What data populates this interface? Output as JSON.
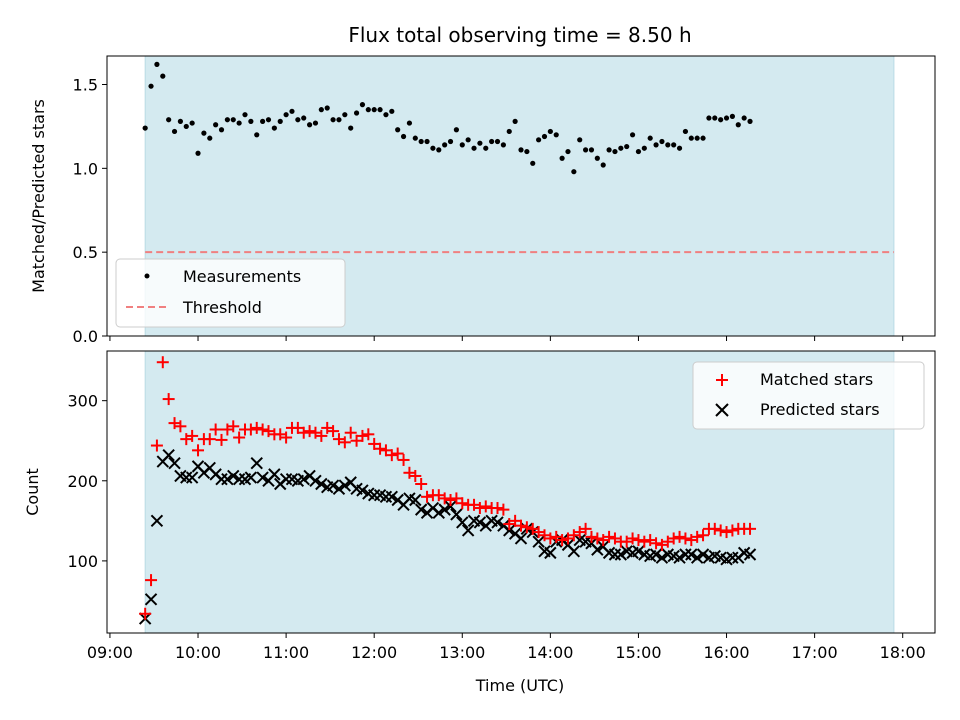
{
  "chart_data": [
    {
      "type": "scatter",
      "title": "Flux total observing time = 8.50 h",
      "ylabel": "Matched/Predicted stars",
      "xlabel": "",
      "ylim": [
        0,
        1.67
      ],
      "yticks": [
        "0.0",
        "0.5",
        "1.0",
        "1.5"
      ],
      "ytick_values": [
        0,
        0.5,
        1.0,
        1.5
      ],
      "shaded_span": [
        "09:24",
        "17:54"
      ],
      "shade_color": "#d4eaf0",
      "threshold": 0.5,
      "threshold_color": "#f08080",
      "legend_position": "lower-left",
      "legend": [
        "Measurements",
        "Threshold"
      ],
      "series": [
        {
          "name": "Measurements",
          "color": "#000000",
          "x_start": "09:24",
          "x_step_min": 4,
          "values": [
            1.24,
            1.49,
            1.62,
            1.55,
            1.29,
            1.22,
            1.28,
            1.25,
            1.27,
            1.09,
            1.21,
            1.18,
            1.26,
            1.23,
            1.29,
            1.29,
            1.27,
            1.32,
            1.28,
            1.2,
            1.28,
            1.29,
            1.24,
            1.28,
            1.32,
            1.34,
            1.29,
            1.3,
            1.26,
            1.27,
            1.35,
            1.36,
            1.29,
            1.29,
            1.32,
            1.24,
            1.33,
            1.38,
            1.35,
            1.35,
            1.35,
            1.32,
            1.34,
            1.23,
            1.19,
            1.27,
            1.18,
            1.16,
            1.16,
            1.12,
            1.11,
            1.14,
            1.16,
            1.23,
            1.14,
            1.17,
            1.12,
            1.15,
            1.12,
            1.16,
            1.16,
            1.14,
            1.22,
            1.28,
            1.11,
            1.1,
            1.03,
            1.17,
            1.19,
            1.22,
            1.2,
            1.06,
            1.1,
            0.98,
            1.17,
            1.11,
            1.11,
            1.06,
            1.02,
            1.11,
            1.1,
            1.12,
            1.13,
            1.2,
            1.1,
            1.12,
            1.18,
            1.14,
            1.16,
            1.14,
            1.14,
            1.12,
            1.22,
            1.18,
            1.18,
            1.18,
            1.3,
            1.3,
            1.29,
            1.3,
            1.31,
            1.26,
            1.3,
            1.28
          ]
        }
      ]
    },
    {
      "type": "scatter",
      "xlabel": "Time (UTC)",
      "ylabel": "Count",
      "ylim": [
        10,
        362
      ],
      "yticks": [
        "100",
        "200",
        "300"
      ],
      "ytick_values": [
        100,
        200,
        300
      ],
      "xticks": [
        "09:00",
        "10:00",
        "11:00",
        "12:00",
        "13:00",
        "14:00",
        "15:00",
        "16:00",
        "17:00",
        "18:00"
      ],
      "xlim": [
        "08:58",
        "18:22"
      ],
      "shaded_span": [
        "09:24",
        "17:54"
      ],
      "shade_color": "#d4eaf0",
      "legend_position": "top-right",
      "legend": [
        "Matched stars",
        "Predicted stars"
      ],
      "series": [
        {
          "name": "Matched stars",
          "marker": "plus",
          "color": "#ff0000",
          "x_start": "09:24",
          "x_step_min": 4,
          "values": [
            34,
            76,
            244,
            348,
            302,
            272,
            268,
            252,
            256,
            238,
            252,
            252,
            264,
            251,
            264,
            268,
            254,
            264,
            264,
            266,
            264,
            262,
            258,
            258,
            254,
            266,
            266,
            260,
            262,
            260,
            256,
            266,
            262,
            252,
            248,
            260,
            250,
            256,
            258,
            246,
            240,
            238,
            232,
            234,
            226,
            210,
            206,
            196,
            180,
            182,
            182,
            178,
            176,
            178,
            172,
            170,
            170,
            166,
            168,
            166,
            166,
            164,
            146,
            150,
            144,
            142,
            140,
            136,
            132,
            128,
            130,
            126,
            128,
            132,
            136,
            140,
            130,
            128,
            126,
            130,
            128,
            124,
            124,
            128,
            126,
            124,
            126,
            122,
            120,
            124,
            128,
            130,
            128,
            126,
            130,
            132,
            140,
            140,
            138,
            136,
            138,
            140,
            140,
            140
          ]
        },
        {
          "name": "Predicted stars",
          "marker": "x",
          "color": "#000000",
          "x_start": "09:24",
          "x_step_min": 4,
          "values": [
            28,
            52,
            150,
            224,
            232,
            222,
            206,
            204,
            204,
            218,
            210,
            216,
            208,
            202,
            202,
            206,
            202,
            202,
            204,
            222,
            204,
            200,
            208,
            196,
            202,
            202,
            200,
            202,
            206,
            200,
            196,
            192,
            194,
            190,
            194,
            198,
            190,
            188,
            184,
            182,
            182,
            180,
            180,
            176,
            170,
            178,
            176,
            164,
            160,
            166,
            160,
            164,
            168,
            158,
            148,
            138,
            150,
            148,
            144,
            150,
            148,
            144,
            138,
            134,
            128,
            140,
            136,
            124,
            112,
            110,
            124,
            126,
            120,
            112,
            126,
            124,
            122,
            114,
            118,
            110,
            108,
            108,
            112,
            110,
            112,
            108,
            106,
            108,
            104,
            108,
            106,
            104,
            108,
            108,
            104,
            108,
            104,
            106,
            104,
            102,
            104,
            104,
            110,
            108
          ]
        }
      ]
    }
  ]
}
